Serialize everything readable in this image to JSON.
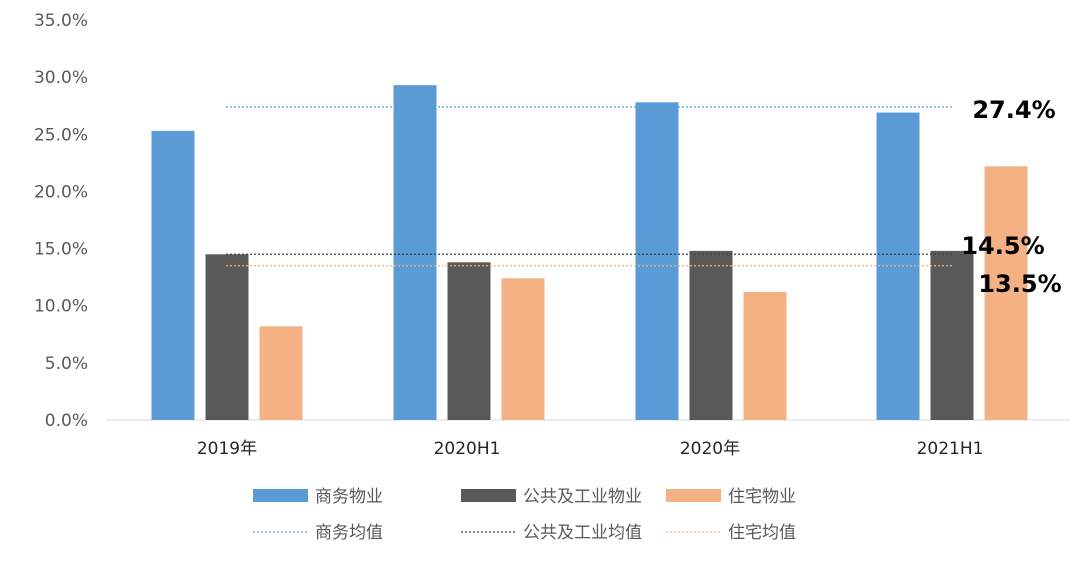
{
  "chart_data": {
    "type": "bar",
    "categories": [
      "2019年",
      "2020H1",
      "2020年",
      "2021H1"
    ],
    "ylim": [
      0,
      35
    ],
    "yticks": [
      "0.0%",
      "5.0%",
      "10.0%",
      "15.0%",
      "20.0%",
      "25.0%",
      "30.0%",
      "35.0%"
    ],
    "series": [
      {
        "name": "商务物业",
        "color": "#5b9bd5",
        "values": [
          25.3,
          29.3,
          27.8,
          26.9
        ]
      },
      {
        "name": "公共及工业物业",
        "color": "#595959",
        "values": [
          14.5,
          13.8,
          14.8,
          14.8
        ]
      },
      {
        "name": "住宅物业",
        "color": "#f4b183",
        "values": [
          8.2,
          12.4,
          11.2,
          22.2
        ]
      }
    ],
    "averages": [
      {
        "name": "商务均值",
        "color": "#4bacc6",
        "value": 27.4,
        "label": "27.4%"
      },
      {
        "name": "公共及工业均值",
        "color": "#404040",
        "value": 14.5,
        "label": "14.5%"
      },
      {
        "name": "住宅均值",
        "color": "#f4b183",
        "value": 13.5,
        "label": "13.5%"
      }
    ],
    "legend_position": "bottom",
    "grid": false
  }
}
